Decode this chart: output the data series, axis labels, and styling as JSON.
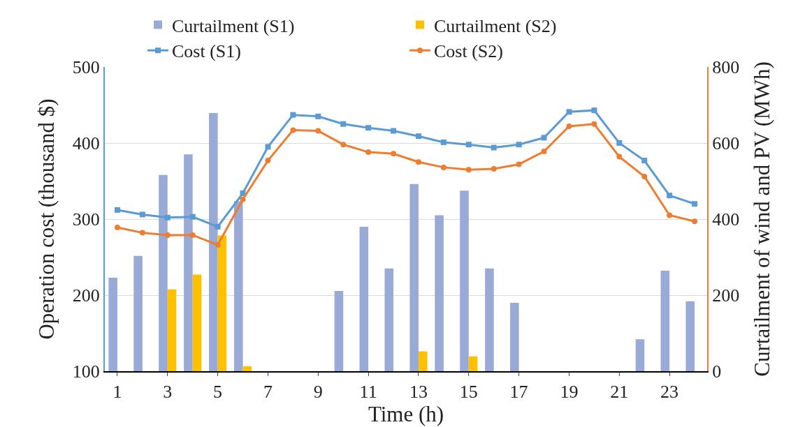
{
  "chart_data": {
    "type": "line",
    "xlabel": "Time (h)",
    "ylabel": "Operation cost (thousand $)",
    "y2label": "Curtailment of wind and PV (MWh)",
    "x": [
      1,
      2,
      3,
      4,
      5,
      6,
      7,
      8,
      9,
      10,
      11,
      12,
      13,
      14,
      15,
      16,
      17,
      18,
      19,
      20,
      21,
      22,
      23,
      24
    ],
    "xlim": [
      0.5,
      24.5
    ],
    "xticks": [
      1,
      3,
      5,
      7,
      9,
      11,
      13,
      15,
      17,
      19,
      21,
      23
    ],
    "ylim": [
      100,
      500
    ],
    "yticks": [
      100,
      200,
      300,
      400,
      500
    ],
    "y2lim": [
      0,
      800
    ],
    "y2ticks": [
      0,
      200,
      400,
      600,
      800
    ],
    "grid": "y",
    "legend": "top",
    "series": [
      {
        "name": "Curtailment (S1)",
        "type": "bar",
        "axis": "y2",
        "color": "#9aaad6",
        "values": [
          246,
          303,
          516,
          570,
          679,
          447,
          0,
          0,
          0,
          211,
          380,
          270,
          492,
          410,
          475,
          270,
          180,
          0,
          0,
          0,
          0,
          84,
          264,
          184
        ]
      },
      {
        "name": "Curtailment (S2)",
        "type": "bar",
        "axis": "y2",
        "color": "#ffc000",
        "values": [
          0,
          0,
          215,
          254,
          357,
          13,
          0,
          0,
          0,
          0,
          0,
          0,
          52,
          0,
          39,
          0,
          0,
          0,
          0,
          0,
          0,
          0,
          0,
          0
        ]
      },
      {
        "name": "Cost (S1)",
        "marker": "square",
        "color": "#5b9bd5",
        "values": [
          312,
          306,
          302,
          303,
          290,
          334,
          395,
          437,
          435,
          425,
          420,
          416,
          409,
          401,
          398,
          394,
          398,
          407,
          441,
          443,
          400,
          377,
          331,
          320
        ]
      },
      {
        "name": "Cost (S2)",
        "marker": "circle",
        "color": "#ed7d31",
        "values": [
          289,
          282,
          279,
          279,
          266,
          326,
          377,
          417,
          416,
          398,
          388,
          386,
          375,
          368,
          365,
          366,
          372,
          389,
          422,
          425,
          382,
          356,
          305,
          297
        ]
      }
    ]
  }
}
